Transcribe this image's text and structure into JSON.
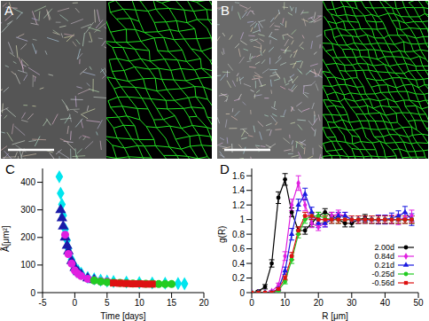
{
  "panels": [
    "A",
    "B",
    "C",
    "D"
  ],
  "chart_data": [
    {
      "type": "scatter",
      "xlabel": "Time [days]",
      "ylabel": "Ã[μm²]",
      "xlim": [
        -5,
        20
      ],
      "xticks": [
        -5,
        0,
        5,
        10,
        15,
        20
      ],
      "ylim": [
        0,
        450
      ],
      "yticks": [
        0,
        100,
        200,
        300,
        400
      ],
      "series": [
        {
          "color": "#00e5ee",
          "marker": "diamond",
          "x": [
            -2.4,
            -2.2,
            -2,
            -1.8,
            -1.5,
            -1.2,
            -1,
            -0.5,
            0,
            0.5,
            1,
            2,
            3,
            4,
            5,
            6,
            8,
            10,
            12,
            14,
            16,
            17
          ],
          "values": [
            420,
            360,
            320,
            280,
            230,
            190,
            160,
            120,
            95,
            80,
            70,
            55,
            50,
            45,
            42,
            40,
            38,
            36,
            35,
            34,
            33,
            32
          ]
        },
        {
          "color": "#1a1aa8",
          "marker": "triangle",
          "x": [
            -2.2,
            -2,
            -1.8,
            -1.5,
            -1.2,
            -1,
            -0.5,
            0,
            0.5,
            1,
            2,
            3
          ],
          "values": [
            300,
            270,
            240,
            200,
            170,
            150,
            115,
            90,
            75,
            65,
            52,
            46
          ]
        },
        {
          "color": "#e020e0",
          "marker": "circle",
          "x": [
            -1.5,
            -1,
            -0.5,
            0,
            0.5,
            1,
            2,
            3,
            4,
            5
          ],
          "values": [
            210,
            140,
            105,
            80,
            68,
            60,
            50,
            45,
            42,
            40
          ]
        },
        {
          "color": "#22cc22",
          "marker": "circle",
          "x": [
            3,
            4,
            5,
            6,
            7,
            8,
            9,
            10,
            11,
            12,
            13,
            14,
            15
          ],
          "values": [
            44,
            40,
            38,
            36,
            35,
            34,
            33,
            33,
            32,
            32,
            31,
            31,
            31
          ]
        },
        {
          "color": "#dd1111",
          "marker": "square",
          "x": [
            6,
            7,
            8,
            9,
            10,
            11,
            12
          ],
          "values": [
            35,
            34,
            33,
            32,
            32,
            31,
            31
          ]
        }
      ]
    },
    {
      "type": "line",
      "xlabel": "R [μm]",
      "ylabel": "g(R)",
      "xlim": [
        0,
        50
      ],
      "xticks": [
        0,
        10,
        20,
        30,
        40,
        50
      ],
      "ylim": [
        0,
        1.7
      ],
      "yticks": [
        0,
        0.2,
        0.4,
        0.6,
        0.8,
        1,
        1.2,
        1.4,
        1.6
      ],
      "legend": "lower right",
      "x": [
        0,
        2,
        4,
        6,
        8,
        10,
        12,
        14,
        16,
        18,
        20,
        22,
        24,
        26,
        28,
        30,
        32,
        34,
        36,
        38,
        40,
        42,
        44,
        46,
        48
      ],
      "series": [
        {
          "name": "2.00d",
          "color": "#000000",
          "marker": "circle",
          "values": [
            0,
            0.02,
            0.08,
            0.4,
            1.3,
            1.55,
            1.1,
            0.85,
            0.85,
            0.95,
            1.05,
            1.1,
            1.05,
            1,
            0.95,
            0.95,
            1,
            1.02,
            1,
            1,
            1,
            1,
            1,
            1,
            1
          ],
          "errors": [
            0,
            0.01,
            0.03,
            0.05,
            0.08,
            0.08,
            0.06,
            0.05,
            0.05,
            0.05,
            0.05,
            0.05,
            0.05,
            0.05,
            0.05,
            0.05,
            0.05,
            0.05,
            0.05,
            0.05,
            0.05,
            0.05,
            0.05,
            0.05,
            0.05
          ]
        },
        {
          "name": "0.84d",
          "color": "#e020e0",
          "marker": "diamond",
          "values": [
            0,
            0,
            0,
            0.02,
            0.1,
            0.5,
            1.2,
            1.5,
            1.2,
            0.95,
            0.9,
            0.95,
            1.05,
            1.08,
            1.05,
            1,
            1,
            1,
            1,
            1,
            1,
            1,
            1,
            1.02,
            1.05
          ],
          "errors": [
            0,
            0,
            0,
            0.01,
            0.03,
            0.06,
            0.08,
            0.1,
            0.08,
            0.06,
            0.05,
            0.05,
            0.05,
            0.05,
            0.05,
            0.05,
            0.05,
            0.05,
            0.05,
            0.06,
            0.06,
            0.06,
            0.07,
            0.07,
            0.08
          ]
        },
        {
          "name": "0.21d",
          "color": "#1a1ae0",
          "marker": "triangle",
          "values": [
            0,
            0,
            0,
            0,
            0.05,
            0.3,
            0.8,
            1.2,
            1.35,
            1.1,
            0.95,
            0.95,
            1,
            1.05,
            1.05,
            1,
            1,
            1,
            1,
            1,
            1,
            1.02,
            1.05,
            1.1,
            1
          ],
          "errors": [
            0,
            0,
            0,
            0,
            0.02,
            0.05,
            0.08,
            0.08,
            0.08,
            0.07,
            0.06,
            0.05,
            0.05,
            0.05,
            0.05,
            0.05,
            0.05,
            0.05,
            0.05,
            0.06,
            0.06,
            0.07,
            0.07,
            0.08,
            0.08
          ]
        },
        {
          "name": "-0.25d",
          "color": "#22cc22",
          "marker": "circle",
          "values": [
            0,
            0,
            0,
            0,
            0.03,
            0.15,
            0.45,
            0.8,
            1,
            1.05,
            1.05,
            1.02,
            1,
            1,
            1,
            1,
            1,
            1,
            1,
            1,
            1,
            1,
            1,
            1,
            1
          ],
          "errors": [
            0,
            0,
            0,
            0,
            0.01,
            0.03,
            0.05,
            0.05,
            0.05,
            0.05,
            0.05,
            0.05,
            0.05,
            0.05,
            0.05,
            0.05,
            0.05,
            0.05,
            0.05,
            0.05,
            0.05,
            0.05,
            0.05,
            0.05,
            0.05
          ]
        },
        {
          "name": "-0.56d",
          "color": "#dd1111",
          "marker": "square",
          "values": [
            0,
            0,
            0,
            0,
            0.05,
            0.2,
            0.5,
            0.85,
            1.05,
            1.05,
            1,
            1,
            1,
            1,
            1,
            1,
            1,
            1,
            1,
            1,
            1,
            1,
            1,
            1,
            1
          ],
          "errors": [
            0,
            0,
            0,
            0,
            0.01,
            0.03,
            0.05,
            0.05,
            0.05,
            0.05,
            0.05,
            0.05,
            0.05,
            0.05,
            0.05,
            0.05,
            0.05,
            0.05,
            0.05,
            0.05,
            0.05,
            0.05,
            0.05,
            0.05,
            0.05
          ]
        }
      ]
    }
  ]
}
